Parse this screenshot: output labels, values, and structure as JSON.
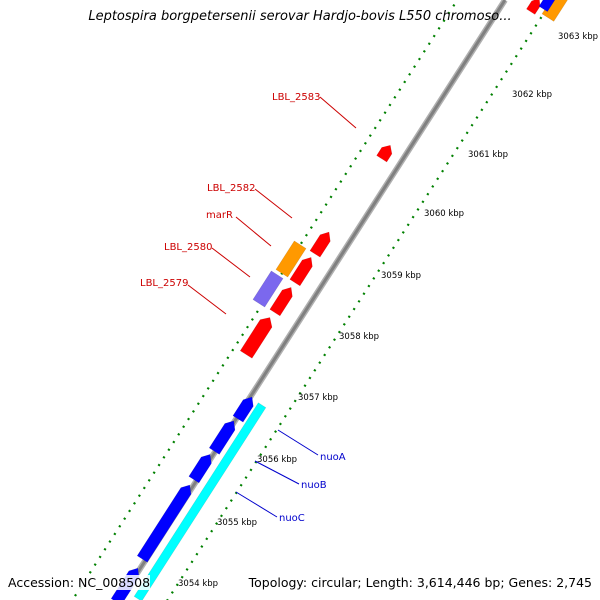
{
  "title": "Leptospira borgpetersenii serovar Hardjo-bovis L550 chromoso...",
  "footer": {
    "accession": "Accession: NC_008508",
    "summary": "Topology: circular; Length: 3,614,446 bp; Genes: 2,745"
  },
  "scale": {
    "unit": "kbp",
    "labels": [
      "3054 kbp",
      "3055 kbp",
      "3056 kbp",
      "3057 kbp",
      "3058 kbp",
      "3059 kbp",
      "3060 kbp",
      "3061 kbp",
      "3062 kbp",
      "3063 kbp"
    ]
  },
  "colors": {
    "backbone": "#808080",
    "forward_gene": "#ff0000",
    "other_gene": "#ff9900",
    "rna_gene": "#7b68ee",
    "operon_gene": "#0000ff",
    "operon_region": "#00ffff",
    "tick": "#008000",
    "label_red": "#cc0000",
    "label_blue": "#0000cc"
  },
  "gene_labels_red": [
    "LBL_2583",
    "LBL_2582",
    "marR",
    "LBL_2580",
    "LBL_2579"
  ],
  "gene_labels_blue": [
    "nuoA",
    "nuoB",
    "nuoC"
  ]
}
